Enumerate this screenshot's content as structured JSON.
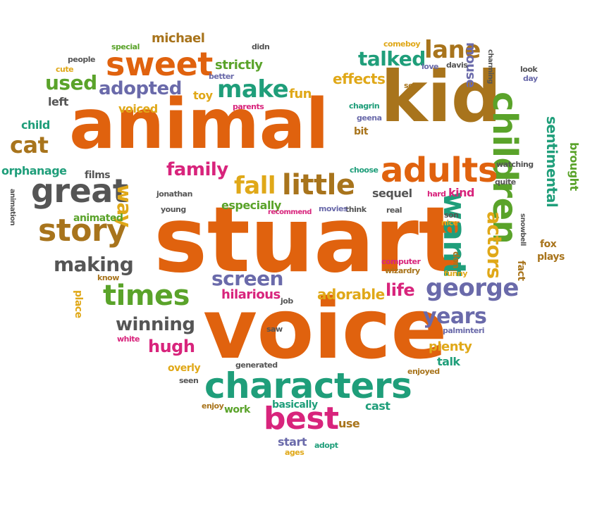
{
  "palette": {
    "orange": "#e0620e",
    "brown": "#a8741c",
    "purple": "#6a6aaa",
    "gray": "#555555",
    "teal": "#1f9e7a",
    "green": "#5aa32a",
    "magenta": "#d8247c",
    "gold": "#e0a818",
    "white_bg": "#ffffff"
  },
  "words": [
    {
      "text": "stuart",
      "color": "orange"
    },
    {
      "text": "voice",
      "color": "orange"
    },
    {
      "text": "animal",
      "color": "orange"
    },
    {
      "text": "kid",
      "color": "brown"
    },
    {
      "text": "characters",
      "color": "teal"
    },
    {
      "text": "children",
      "color": "green"
    },
    {
      "text": "adults",
      "color": "orange"
    },
    {
      "text": "great",
      "color": "gray"
    },
    {
      "text": "story",
      "color": "brown"
    },
    {
      "text": "sweet",
      "color": "orange"
    },
    {
      "text": "little",
      "color": "brown"
    },
    {
      "text": "best",
      "color": "magenta"
    },
    {
      "text": "want",
      "color": "teal"
    },
    {
      "text": "george",
      "color": "purple"
    },
    {
      "text": "times",
      "color": "green"
    },
    {
      "text": "actors",
      "color": "gold"
    },
    {
      "text": "make",
      "color": "teal"
    },
    {
      "text": "fall",
      "color": "gold"
    },
    {
      "text": "family",
      "color": "magenta"
    },
    {
      "text": "lane",
      "color": "brown"
    },
    {
      "text": "talked",
      "color": "teal"
    },
    {
      "text": "years",
      "color": "purple"
    },
    {
      "text": "screen",
      "color": "purple"
    },
    {
      "text": "making",
      "color": "gray"
    },
    {
      "text": "winning",
      "color": "gray"
    },
    {
      "text": "cat",
      "color": "brown"
    },
    {
      "text": "used",
      "color": "green"
    },
    {
      "text": "adopted",
      "color": "purple"
    },
    {
      "text": "way",
      "color": "gold"
    },
    {
      "text": "sentimental",
      "color": "teal"
    },
    {
      "text": "hugh",
      "color": "magenta"
    },
    {
      "text": "life",
      "color": "magenta"
    },
    {
      "text": "effects",
      "color": "gold"
    },
    {
      "text": "adorable",
      "color": "gold"
    },
    {
      "text": "hilarious",
      "color": "magenta"
    },
    {
      "text": "strictly",
      "color": "green"
    },
    {
      "text": "michael",
      "color": "brown"
    },
    {
      "text": "mouse",
      "color": "purple"
    },
    {
      "text": "brought",
      "color": "green"
    },
    {
      "text": "fun",
      "color": "gold"
    },
    {
      "text": "toy",
      "color": "gold"
    },
    {
      "text": "voiced",
      "color": "gold"
    },
    {
      "text": "left",
      "color": "gray"
    },
    {
      "text": "child",
      "color": "teal"
    },
    {
      "text": "orphanage",
      "color": "teal"
    },
    {
      "text": "especially",
      "color": "green"
    },
    {
      "text": "sequel",
      "color": "gray"
    },
    {
      "text": "kind",
      "color": "magenta"
    },
    {
      "text": "plenty",
      "color": "gold"
    },
    {
      "text": "talk",
      "color": "teal"
    },
    {
      "text": "cast",
      "color": "teal"
    },
    {
      "text": "basically",
      "color": "teal"
    },
    {
      "text": "work",
      "color": "green"
    },
    {
      "text": "use",
      "color": "brown"
    },
    {
      "text": "start",
      "color": "purple"
    },
    {
      "text": "adopt",
      "color": "teal"
    },
    {
      "text": "ages",
      "color": "gold"
    },
    {
      "text": "overly",
      "color": "gold"
    },
    {
      "text": "place",
      "color": "gold"
    },
    {
      "text": "know",
      "color": "brown"
    },
    {
      "text": "animated",
      "color": "green"
    },
    {
      "text": "young",
      "color": "gray"
    },
    {
      "text": "jonathan",
      "color": "gray"
    },
    {
      "text": "films",
      "color": "gray"
    },
    {
      "text": "animation",
      "color": "gray"
    },
    {
      "text": "special",
      "color": "green"
    },
    {
      "text": "people",
      "color": "gray"
    },
    {
      "text": "cute",
      "color": "gold"
    },
    {
      "text": "better",
      "color": "purple"
    },
    {
      "text": "parents",
      "color": "magenta"
    },
    {
      "text": "didn",
      "color": "gray"
    },
    {
      "text": "comeboy",
      "color": "gold"
    },
    {
      "text": "love",
      "color": "purple"
    },
    {
      "text": "davis",
      "color": "gray"
    },
    {
      "text": "charming",
      "color": "gray"
    },
    {
      "text": "look",
      "color": "gray"
    },
    {
      "text": "day",
      "color": "purple"
    },
    {
      "text": "set",
      "color": "brown"
    },
    {
      "text": "chagrin",
      "color": "teal"
    },
    {
      "text": "geena",
      "color": "purple"
    },
    {
      "text": "bit",
      "color": "brown"
    },
    {
      "text": "choose",
      "color": "teal"
    },
    {
      "text": "watching",
      "color": "gray"
    },
    {
      "text": "quite",
      "color": "gray"
    },
    {
      "text": "hard",
      "color": "magenta"
    },
    {
      "text": "think",
      "color": "gray"
    },
    {
      "text": "movies",
      "color": "purple"
    },
    {
      "text": "recommend",
      "color": "magenta"
    },
    {
      "text": "real",
      "color": "gray"
    },
    {
      "text": "son",
      "color": "gray"
    },
    {
      "text": "nice",
      "color": "gold"
    },
    {
      "text": "snowbell",
      "color": "gray"
    },
    {
      "text": "fox",
      "color": "brown"
    },
    {
      "text": "plays",
      "color": "brown"
    },
    {
      "text": "fact",
      "color": "brown"
    },
    {
      "text": "don",
      "color": "brown"
    },
    {
      "text": "funny",
      "color": "gold"
    },
    {
      "text": "computer",
      "color": "magenta"
    },
    {
      "text": "wizardry",
      "color": "brown"
    },
    {
      "text": "job",
      "color": "gray"
    },
    {
      "text": "saw",
      "color": "gray"
    },
    {
      "text": "palminteri",
      "color": "purple"
    },
    {
      "text": "white",
      "color": "magenta"
    },
    {
      "text": "generated",
      "color": "gray"
    },
    {
      "text": "enjoyed",
      "color": "brown"
    },
    {
      "text": "seen",
      "color": "gray"
    },
    {
      "text": "enjoy",
      "color": "brown"
    }
  ]
}
